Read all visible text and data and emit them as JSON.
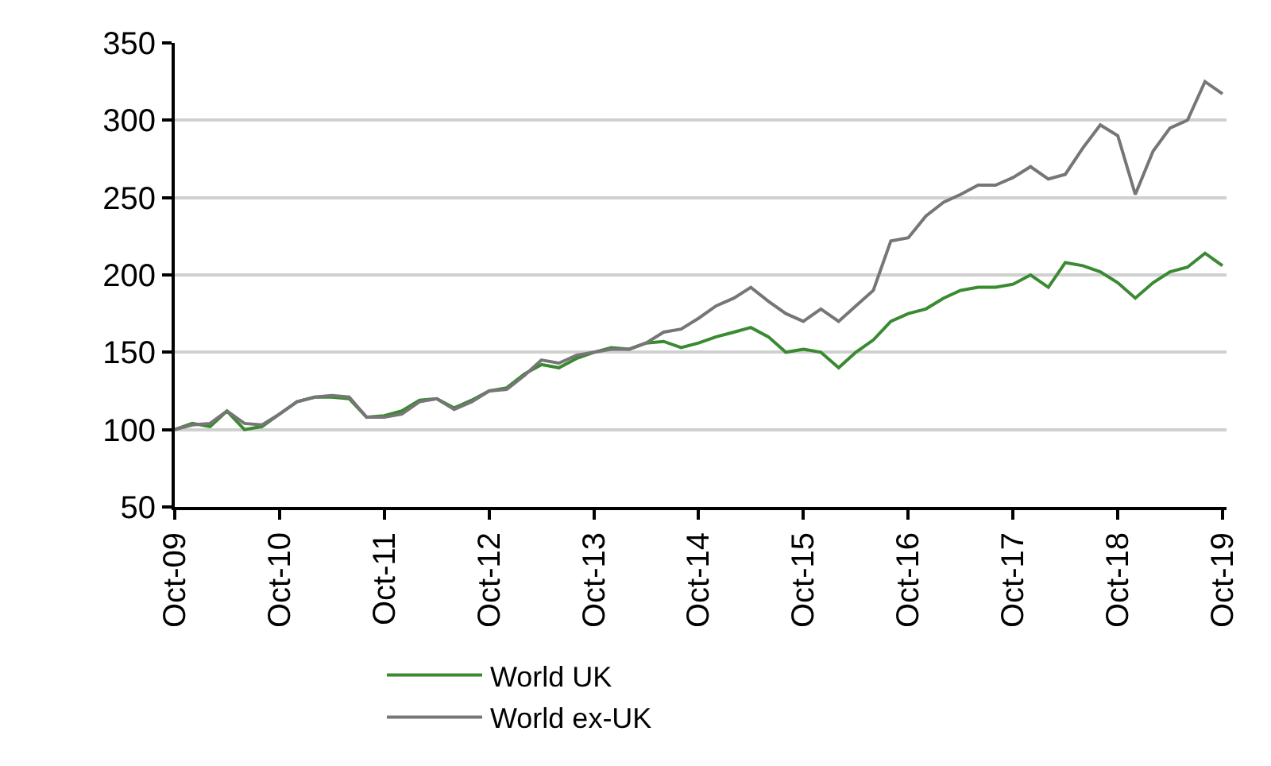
{
  "chart_data": {
    "type": "line",
    "x": [
      "2009-10",
      "2009-12",
      "2010-02",
      "2010-04",
      "2010-06",
      "2010-08",
      "2010-10",
      "2010-12",
      "2011-02",
      "2011-04",
      "2011-06",
      "2011-08",
      "2011-10",
      "2011-12",
      "2012-02",
      "2012-04",
      "2012-06",
      "2012-08",
      "2012-10",
      "2012-12",
      "2013-02",
      "2013-04",
      "2013-06",
      "2013-08",
      "2013-10",
      "2013-12",
      "2014-02",
      "2014-04",
      "2014-06",
      "2014-08",
      "2014-10",
      "2014-12",
      "2015-02",
      "2015-04",
      "2015-06",
      "2015-08",
      "2015-10",
      "2015-12",
      "2016-02",
      "2016-04",
      "2016-06",
      "2016-08",
      "2016-10",
      "2016-12",
      "2017-02",
      "2017-04",
      "2017-06",
      "2017-08",
      "2017-10",
      "2017-12",
      "2018-02",
      "2018-04",
      "2018-06",
      "2018-08",
      "2018-10",
      "2018-12",
      "2019-02",
      "2019-04",
      "2019-06",
      "2019-08",
      "2019-10"
    ],
    "series": [
      {
        "name": "World UK",
        "color": "#3a8a32",
        "values": [
          100,
          104,
          102,
          112,
          100,
          102,
          110,
          118,
          121,
          121,
          120,
          108,
          109,
          112,
          119,
          120,
          114,
          119,
          125,
          127,
          136,
          142,
          140,
          146,
          150,
          153,
          152,
          156,
          157,
          153,
          156,
          160,
          163,
          166,
          160,
          150,
          152,
          150,
          140,
          150,
          158,
          170,
          175,
          178,
          185,
          190,
          192,
          192,
          194,
          200,
          192,
          208,
          206,
          202,
          195,
          185,
          195,
          202,
          205,
          214,
          206
        ]
      },
      {
        "name": "World ex-UK",
        "color": "#767676",
        "values": [
          100,
          103,
          104,
          112,
          104,
          103,
          110,
          118,
          121,
          122,
          121,
          108,
          108,
          110,
          118,
          120,
          113,
          118,
          125,
          126,
          135,
          145,
          143,
          148,
          150,
          152,
          152,
          156,
          163,
          165,
          172,
          180,
          185,
          192,
          183,
          175,
          170,
          178,
          170,
          180,
          190,
          222,
          224,
          238,
          247,
          252,
          258,
          258,
          263,
          270,
          262,
          265,
          282,
          297,
          290,
          252,
          280,
          295,
          300,
          325,
          317
        ]
      }
    ],
    "xlim": [
      "2009-10-01",
      "2019-10-15"
    ],
    "xticks": [
      {
        "value": "2009-10-01",
        "label": "Oct-09"
      },
      {
        "value": "2010-10-01",
        "label": "Oct-10"
      },
      {
        "value": "2011-10-01",
        "label": "Oct-11"
      },
      {
        "value": "2012-10-01",
        "label": "Oct-12"
      },
      {
        "value": "2013-10-01",
        "label": "Oct-13"
      },
      {
        "value": "2014-10-01",
        "label": "Oct-14"
      },
      {
        "value": "2015-10-01",
        "label": "Oct-15"
      },
      {
        "value": "2016-10-01",
        "label": "Oct-16"
      },
      {
        "value": "2017-10-01",
        "label": "Oct-17"
      },
      {
        "value": "2018-10-01",
        "label": "Oct-18"
      },
      {
        "value": "2019-10-01",
        "label": "Oct-19"
      }
    ],
    "ylim": [
      50,
      350
    ],
    "yticks": [
      50,
      100,
      150,
      200,
      250,
      300,
      350
    ],
    "grid": "y",
    "legend": "bottom",
    "line_style": "solid",
    "marker": "none"
  }
}
